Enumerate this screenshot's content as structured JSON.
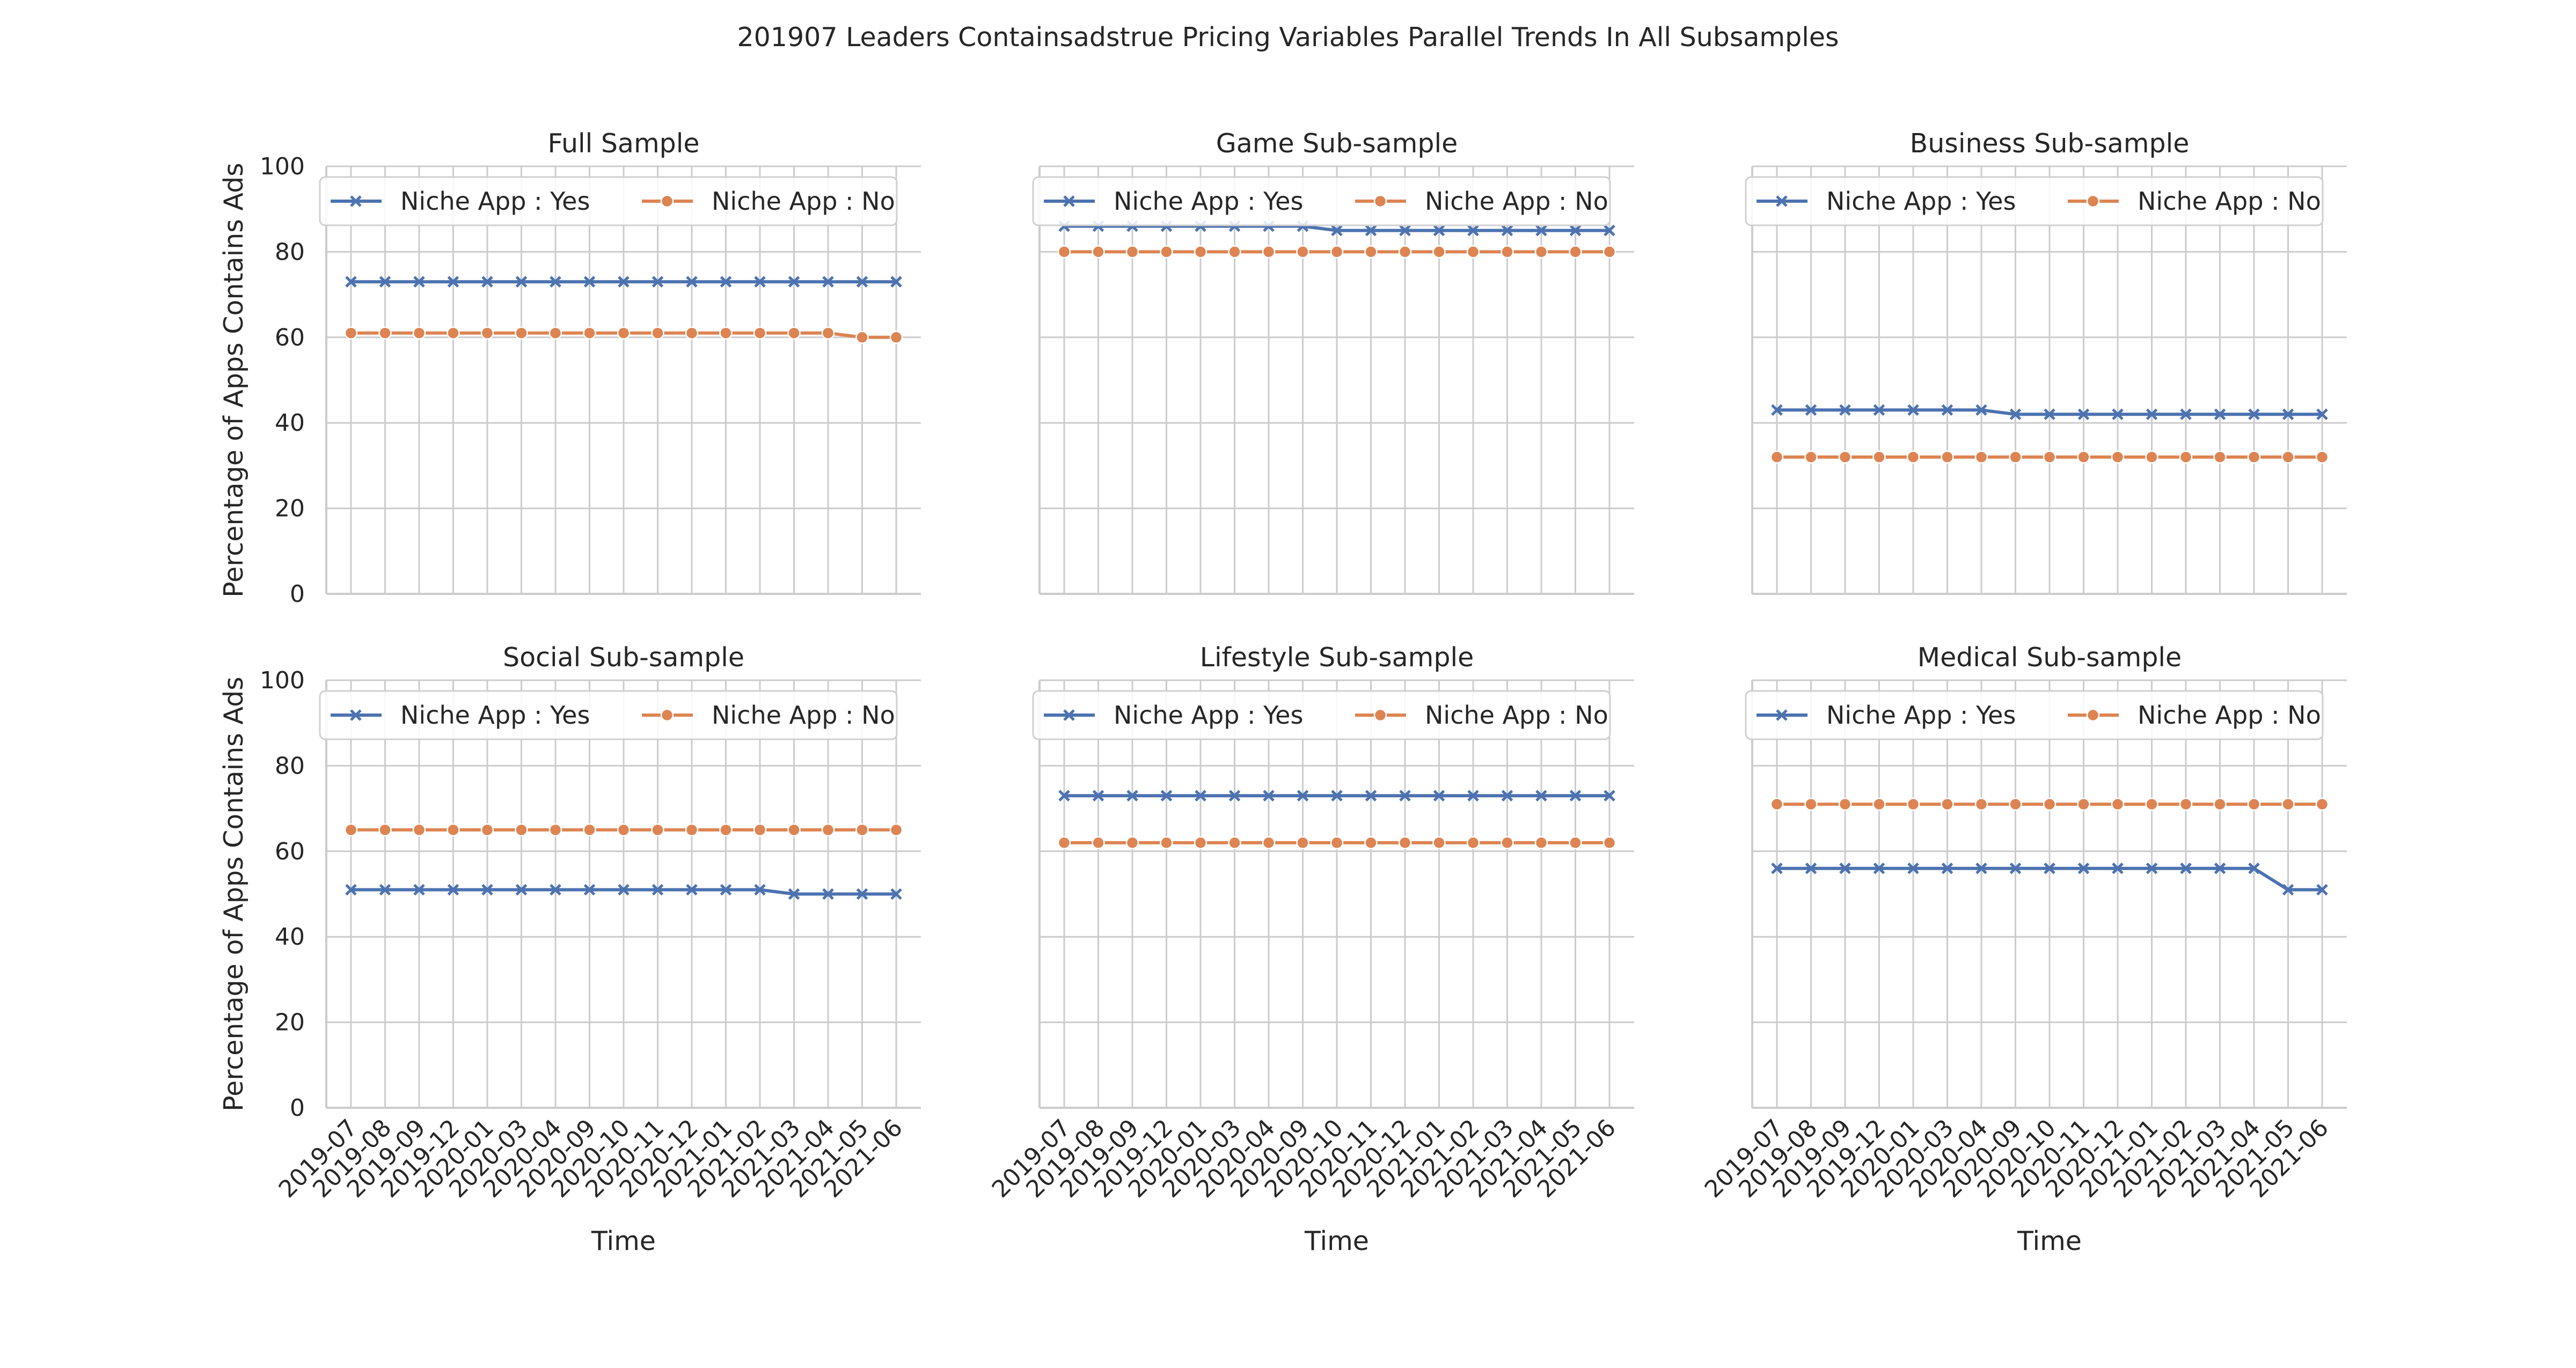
{
  "chart_data": {
    "type": "line",
    "title": "201907 Leaders Containsadstrue Pricing Variables Parallel Trends In All Subsamples",
    "x": [
      "2019-07",
      "2019-08",
      "2019-09",
      "2019-12",
      "2020-01",
      "2020-03",
      "2020-04",
      "2020-09",
      "2020-10",
      "2020-11",
      "2020-12",
      "2021-01",
      "2021-02",
      "2021-03",
      "2021-04",
      "2021-05",
      "2021-06"
    ],
    "xlabel": "Time",
    "ylabel": "Percentage of Apps Contains Ads",
    "ylim": [
      0,
      100
    ],
    "yticks": [
      "0",
      "20",
      "40",
      "60",
      "80",
      "100"
    ],
    "grid": true,
    "legend_position": "upper",
    "series_names": [
      "Niche App : Yes",
      "Niche App : No"
    ],
    "colors": {
      "yes": "#4c72b0",
      "no": "#dd8452"
    },
    "markers": {
      "yes": "x",
      "no": "o"
    },
    "panels": [
      {
        "title": "Full Sample",
        "yes": [
          73,
          73,
          73,
          73,
          73,
          73,
          73,
          73,
          73,
          73,
          73,
          73,
          73,
          73,
          73,
          73,
          73
        ],
        "no": [
          61,
          61,
          61,
          61,
          61,
          61,
          61,
          61,
          61,
          61,
          61,
          61,
          61,
          61,
          61,
          60,
          60
        ]
      },
      {
        "title": "Game Sub-sample",
        "yes": [
          86,
          86,
          86,
          86,
          86,
          86,
          86,
          86,
          85,
          85,
          85,
          85,
          85,
          85,
          85,
          85,
          85
        ],
        "no": [
          80,
          80,
          80,
          80,
          80,
          80,
          80,
          80,
          80,
          80,
          80,
          80,
          80,
          80,
          80,
          80,
          80
        ]
      },
      {
        "title": "Business Sub-sample",
        "yes": [
          43,
          43,
          43,
          43,
          43,
          43,
          43,
          42,
          42,
          42,
          42,
          42,
          42,
          42,
          42,
          42,
          42
        ],
        "no": [
          32,
          32,
          32,
          32,
          32,
          32,
          32,
          32,
          32,
          32,
          32,
          32,
          32,
          32,
          32,
          32,
          32
        ]
      },
      {
        "title": "Social Sub-sample",
        "yes": [
          51,
          51,
          51,
          51,
          51,
          51,
          51,
          51,
          51,
          51,
          51,
          51,
          51,
          50,
          50,
          50,
          50
        ],
        "no": [
          65,
          65,
          65,
          65,
          65,
          65,
          65,
          65,
          65,
          65,
          65,
          65,
          65,
          65,
          65,
          65,
          65
        ]
      },
      {
        "title": "Lifestyle Sub-sample",
        "yes": [
          73,
          73,
          73,
          73,
          73,
          73,
          73,
          73,
          73,
          73,
          73,
          73,
          73,
          73,
          73,
          73,
          73
        ],
        "no": [
          62,
          62,
          62,
          62,
          62,
          62,
          62,
          62,
          62,
          62,
          62,
          62,
          62,
          62,
          62,
          62,
          62
        ]
      },
      {
        "title": "Medical Sub-sample",
        "yes": [
          56,
          56,
          56,
          56,
          56,
          56,
          56,
          56,
          56,
          56,
          56,
          56,
          56,
          56,
          56,
          51,
          51
        ],
        "no": [
          71,
          71,
          71,
          71,
          71,
          71,
          71,
          71,
          71,
          71,
          71,
          71,
          71,
          71,
          71,
          71,
          71
        ]
      }
    ]
  }
}
